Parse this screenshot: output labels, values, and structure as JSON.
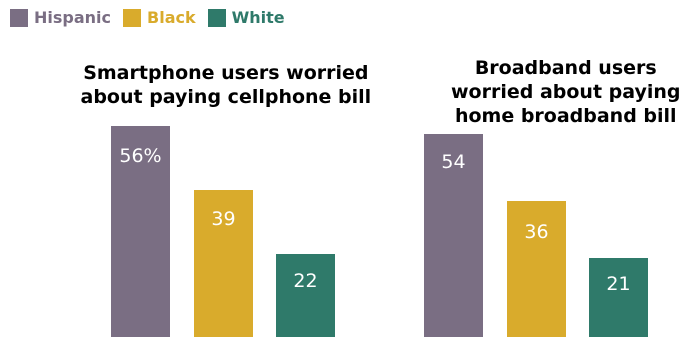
{
  "legend": [
    {
      "name": "Hispanic",
      "color": "#7a6e83"
    },
    {
      "name": "Black",
      "color": "#d9ab2c"
    },
    {
      "name": "White",
      "color": "#2f7a6a"
    }
  ],
  "chart_data": [
    {
      "type": "bar",
      "title": "Smartphone users worried about paying cellphone bill",
      "title_lines": [
        "Smartphone users worried",
        "about paying cellphone bill"
      ],
      "categories": [
        "Hispanic",
        "Black",
        "White"
      ],
      "values": [
        56,
        39,
        22
      ],
      "labels": [
        "56%",
        "39",
        "22"
      ],
      "ylim": [
        0,
        60
      ],
      "grid": false,
      "legend": "top-left"
    },
    {
      "type": "bar",
      "title": "Broadband users worried about paying home broadband bill",
      "title_lines": [
        "Broadband users",
        "worried about paying",
        "home broadband bill"
      ],
      "categories": [
        "Hispanic",
        "Black",
        "White"
      ],
      "values": [
        54,
        36,
        21
      ],
      "labels": [
        "54",
        "36",
        "21"
      ],
      "ylim": [
        0,
        60
      ],
      "grid": false,
      "legend": "top-left"
    }
  ]
}
